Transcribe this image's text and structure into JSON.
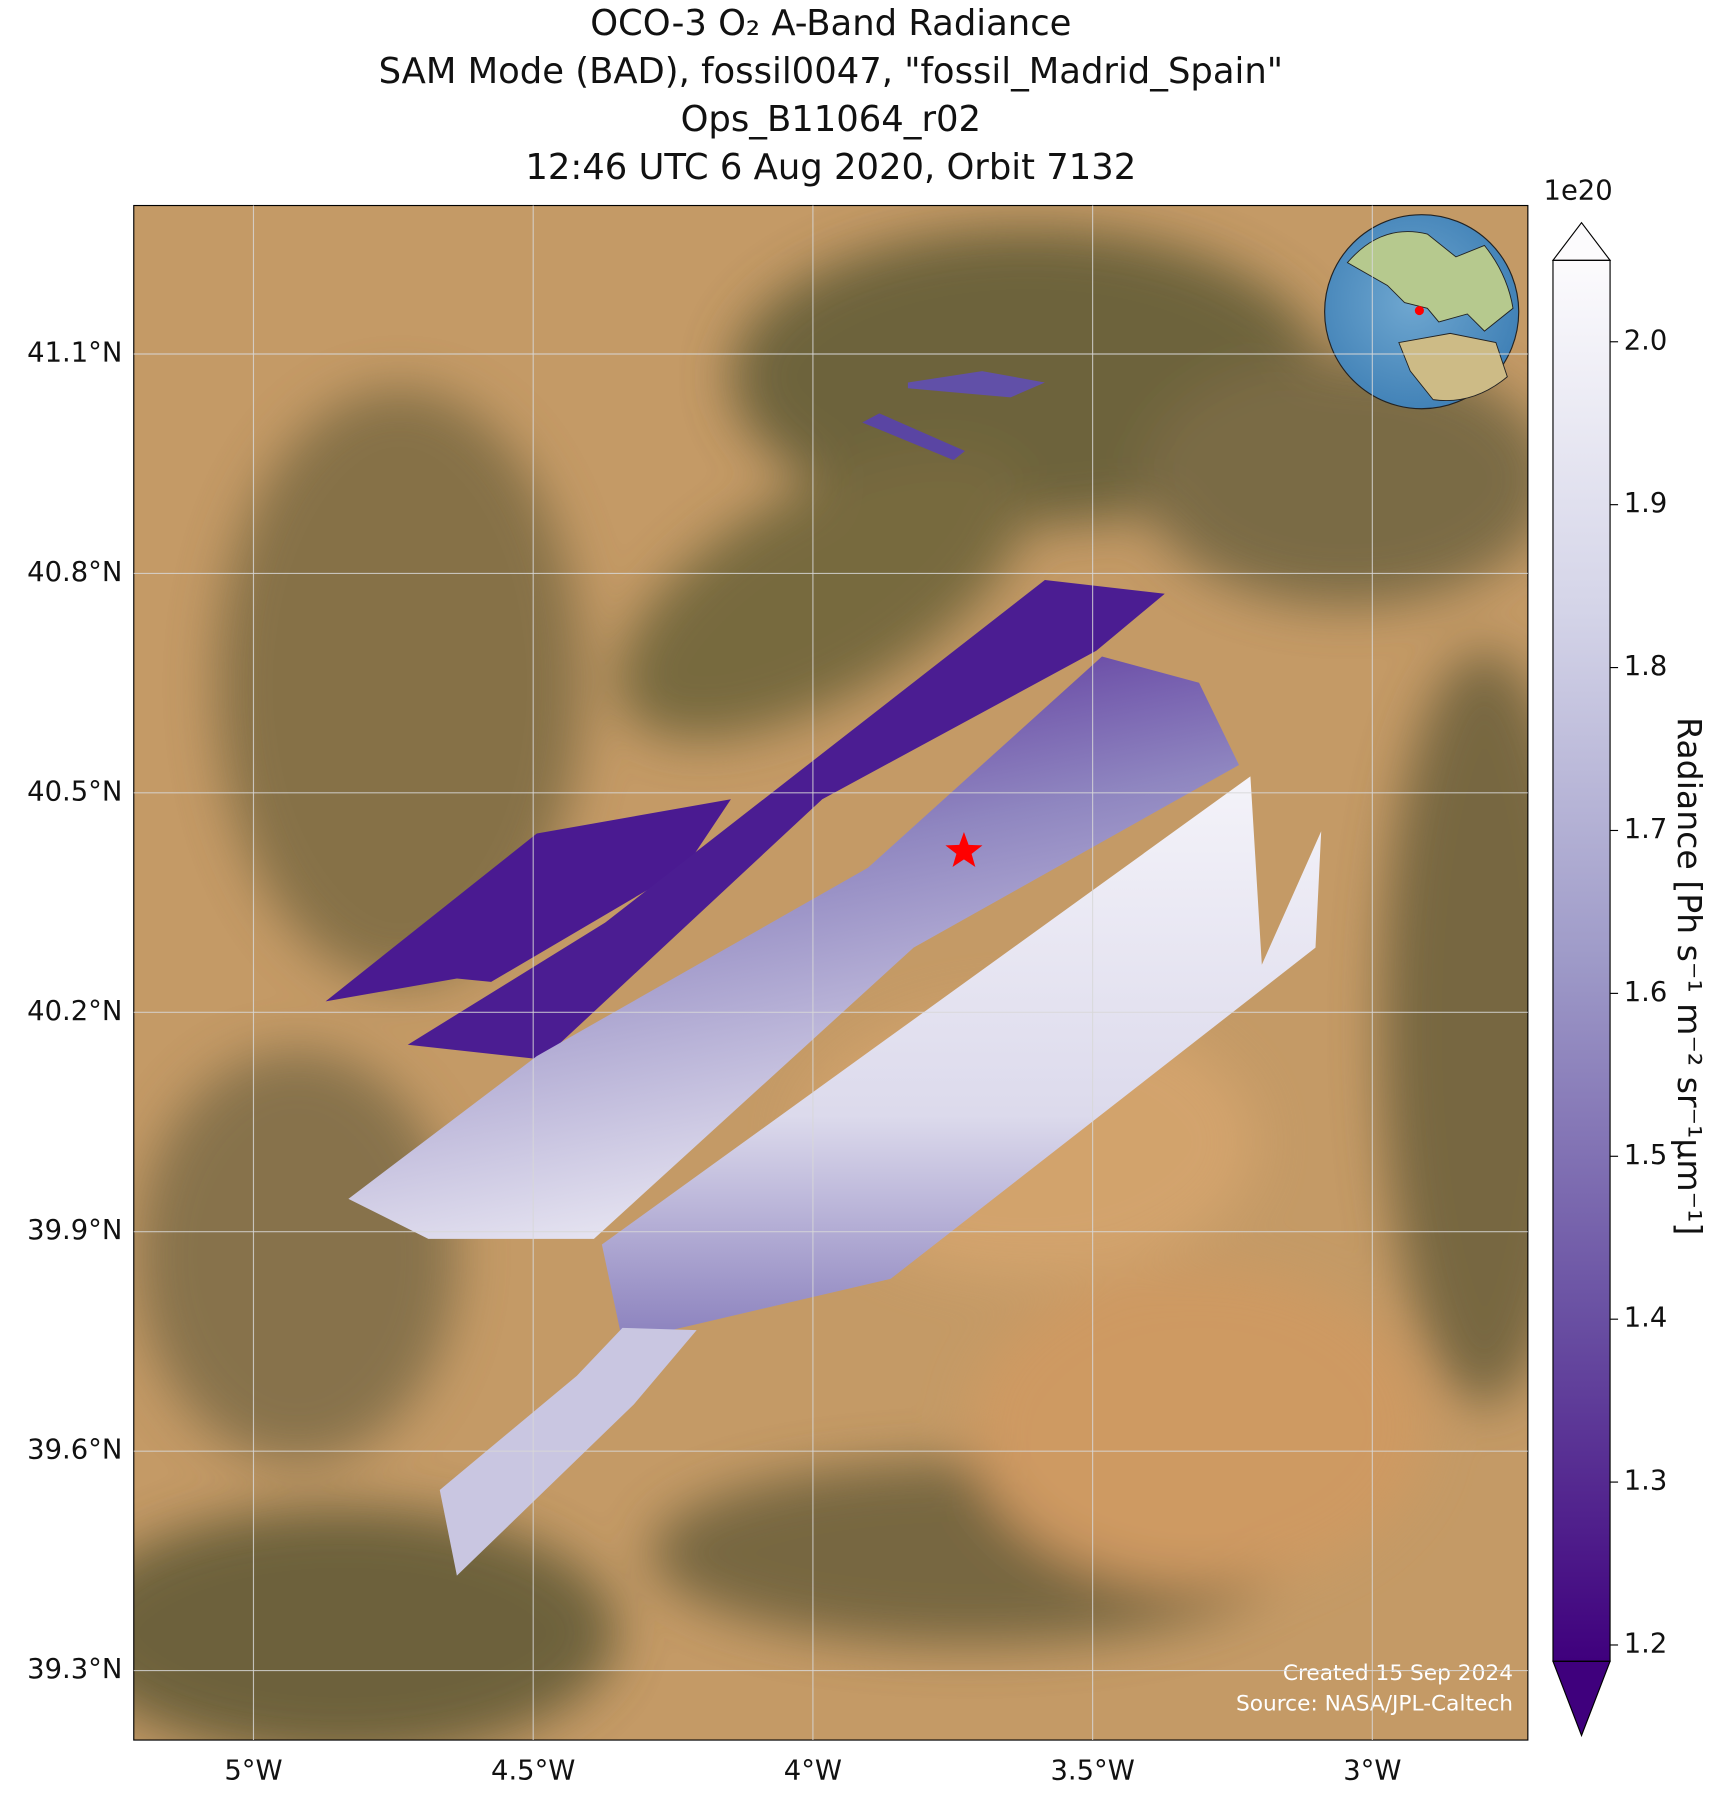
{
  "chart_data": {
    "type": "map",
    "title": [
      "OCO-3 O₂ A-Band Radiance",
      "SAM Mode (BAD), fossil0047, \"fossil_Madrid_Spain\"",
      "Ops_B11064_r02",
      "12:46 UTC 6 Aug 2020, Orbit 7132"
    ],
    "xlim": [
      -5.214,
      -2.722
    ],
    "ylim": [
      39.205,
      41.303
    ],
    "xticks": [
      {
        "value": -5,
        "label": "5°W"
      },
      {
        "value": -4.5,
        "label": "4.5°W"
      },
      {
        "value": -4,
        "label": "4°W"
      },
      {
        "value": -3.5,
        "label": "3.5°W"
      },
      {
        "value": -3,
        "label": "3°W"
      }
    ],
    "yticks": [
      {
        "value": 41.1,
        "label": "41.1°N"
      },
      {
        "value": 40.8,
        "label": "40.8°N"
      },
      {
        "value": 40.5,
        "label": "40.5°N"
      },
      {
        "value": 40.2,
        "label": "40.2°N"
      },
      {
        "value": 39.9,
        "label": "39.9°N"
      },
      {
        "value": 39.6,
        "label": "39.6°N"
      },
      {
        "value": 39.3,
        "label": "39.3°N"
      }
    ],
    "grid": true,
    "target": {
      "lon": -3.73,
      "lat": 40.42,
      "color": "#ff0000"
    },
    "colorbar": {
      "label": "Radiance [Ph s⁻¹ m⁻² sr⁻¹μm⁻¹]",
      "offset_label": "1e20",
      "colormap": "Purples",
      "lim": [
        1.19,
        2.05
      ],
      "ticks": [
        1.2,
        1.3,
        1.4,
        1.5,
        1.6,
        1.7,
        1.8,
        1.9,
        {
          "value": 2,
          "label": "2.0"
        }
      ]
    },
    "credits": [
      "Created 15 Sep 2024",
      "Source: NASA/JPL-Caltech"
    ]
  }
}
